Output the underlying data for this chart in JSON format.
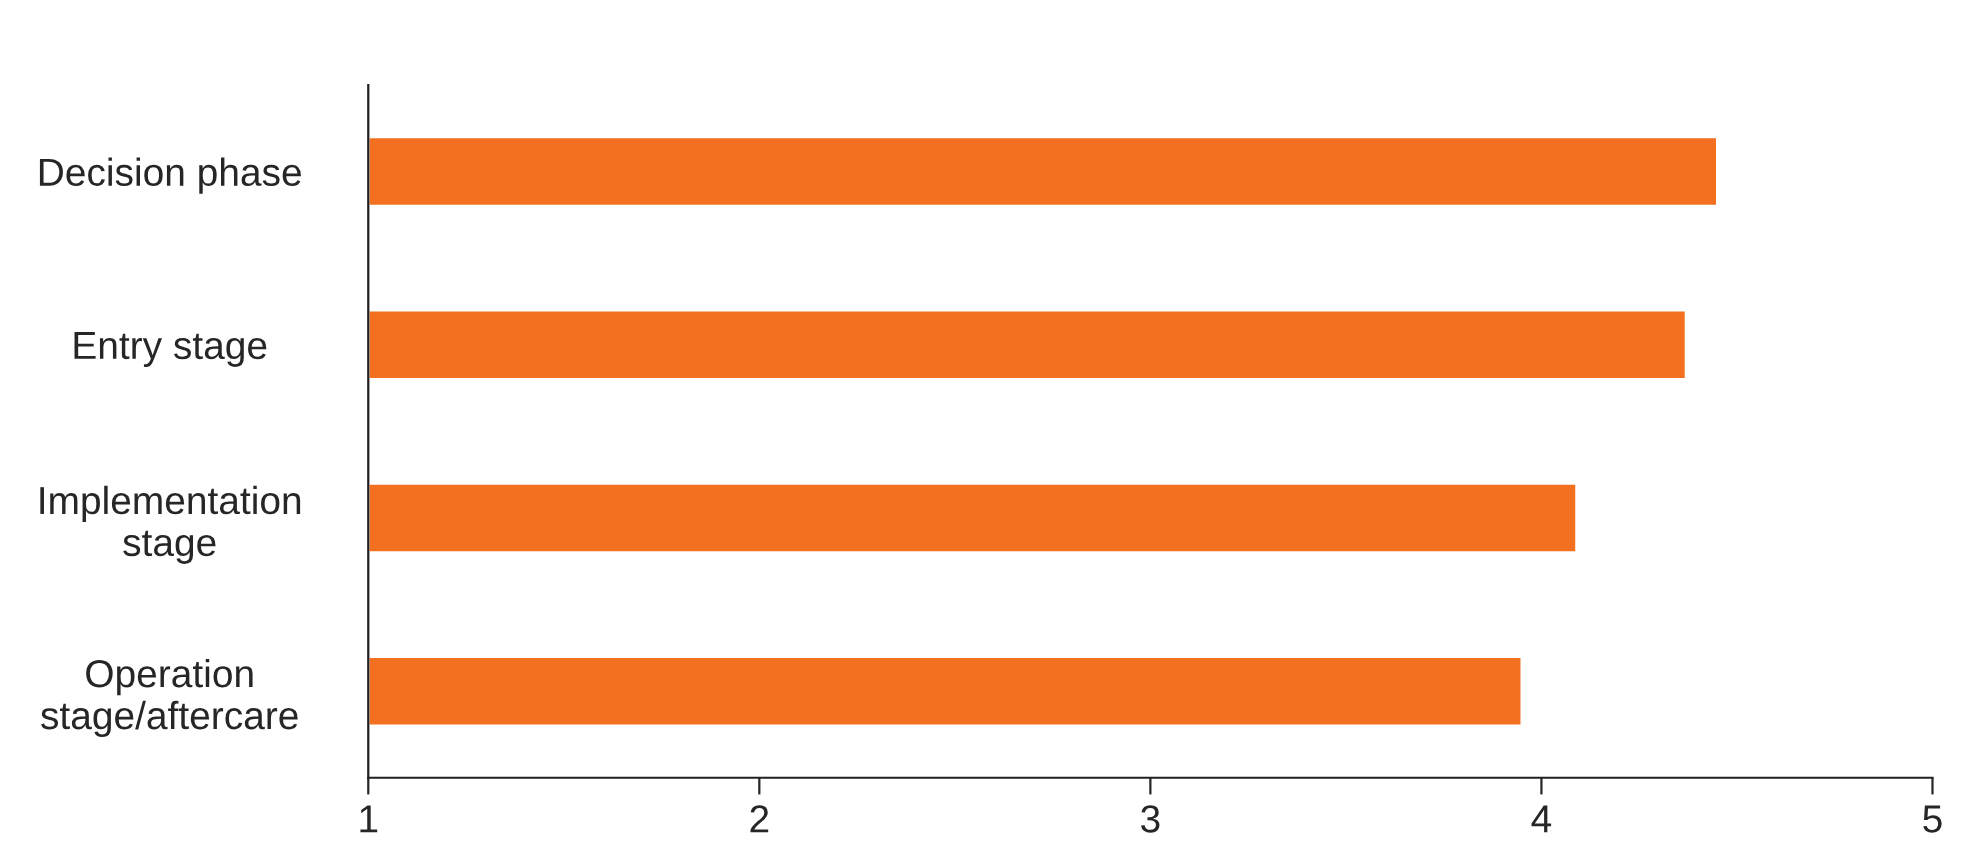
{
  "chart_data": {
    "type": "bar",
    "orientation": "horizontal",
    "categories": [
      "Decision phase",
      "Entry stage",
      "Implementation\nstage",
      "Operation\nstage/aftercare"
    ],
    "values": [
      4.45,
      4.37,
      4.09,
      3.95
    ],
    "color": "#f37021",
    "xlim": [
      1,
      5
    ],
    "xticks": [
      1,
      2,
      3,
      4,
      5
    ],
    "grid": false,
    "legend": false
  }
}
